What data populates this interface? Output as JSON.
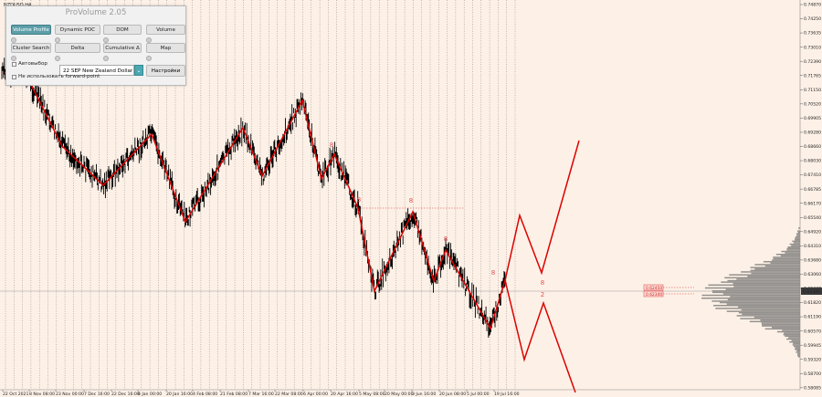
{
  "symbol_title": "NZDUSD,H4",
  "panel": {
    "title": "ProVolume 2.05",
    "buttons": [
      "Volume Profile",
      "Dynamic POC",
      "DOM",
      "Volume",
      "Cluster Search",
      "Delta",
      "Cumulative Δ",
      "Map"
    ],
    "active_button": "Volume Profile",
    "auto_label": "Автовыбор",
    "symbol_value": "22 SEP New Zealand Dollar",
    "settings_label": "Настройки",
    "forward_label": "Не использовать forward-point"
  },
  "y_axis": {
    "ticks": [
      "0.74870",
      "0.74250",
      "0.73635",
      "0.73010",
      "0.72390",
      "0.71765",
      "0.71150",
      "0.70520",
      "0.69905",
      "0.69280",
      "0.68660",
      "0.68030",
      "0.67410",
      "0.66785",
      "0.66170",
      "0.65540",
      "0.64920",
      "0.64310",
      "0.63680",
      "0.63060",
      "0.62440",
      "0.61820",
      "0.61190",
      "0.60570",
      "0.59945",
      "0.59320",
      "0.58700",
      "0.58085"
    ],
    "current_price": "0.62340"
  },
  "x_axis": {
    "ticks": [
      "22 Oct 2021",
      "8 Nov 08:00",
      "23 Nov 00:00",
      "7 Dec 16:00",
      "22 Dec 16:00",
      "6 Jan 00:00",
      "20 Jan 16:00",
      "4 Feb 08:00",
      "21 Feb 08:00",
      "7 Mar 16:00",
      "22 Mar 08:00",
      "6 Apr 00:00",
      "20 Apr 16:00",
      "5 May 08:00",
      "20 May 00:00",
      "3 Jun 16:00",
      "20 Jun 08:00",
      "5 Jul 00:00",
      "19 Jul 16:00"
    ]
  },
  "wave_labels": [
    "8",
    "8",
    "8",
    "8",
    "8",
    "8",
    "2",
    "8"
  ],
  "price_tags": [
    "0.62450",
    "0.62340"
  ],
  "colors": {
    "background": "#fdf1e7",
    "zigzag": "#e00000",
    "candle": "#000000",
    "profile": "#6e6e6e",
    "button_active": "#5d9ea8"
  }
}
